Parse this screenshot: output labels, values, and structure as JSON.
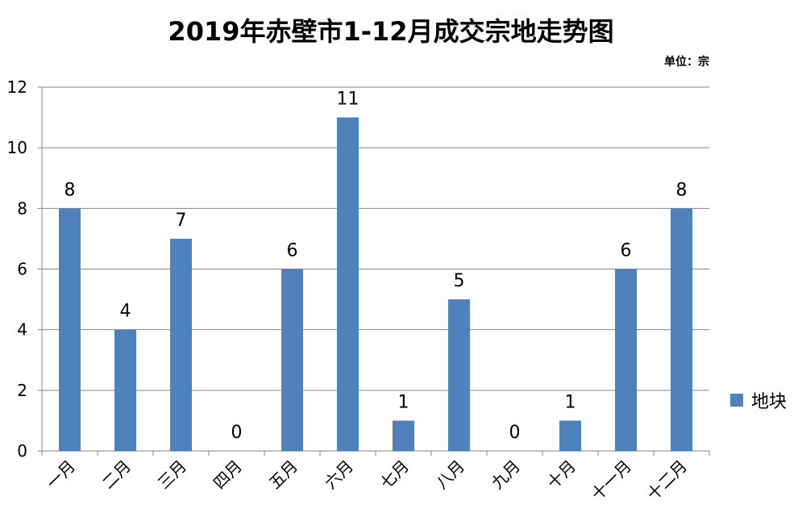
{
  "chart_data": {
    "type": "bar",
    "title": "2019年赤壁市1-12月成交宗地走势图",
    "unit": "单位：宗",
    "categories": [
      "一月",
      "二月",
      "三月",
      "四月",
      "五月",
      "六月",
      "七月",
      "八月",
      "九月",
      "十月",
      "十一月",
      "十二月"
    ],
    "series": [
      {
        "name": "地块",
        "values": [
          8,
          4,
          7,
          0,
          6,
          11,
          1,
          5,
          0,
          1,
          6,
          8
        ]
      }
    ],
    "ylim": [
      0,
      12
    ],
    "yticks": [
      0,
      2,
      4,
      6,
      8,
      10,
      12
    ],
    "grid": true,
    "legend_position": "right",
    "bar_color": "#4F81BD",
    "grid_color": "#868686"
  }
}
